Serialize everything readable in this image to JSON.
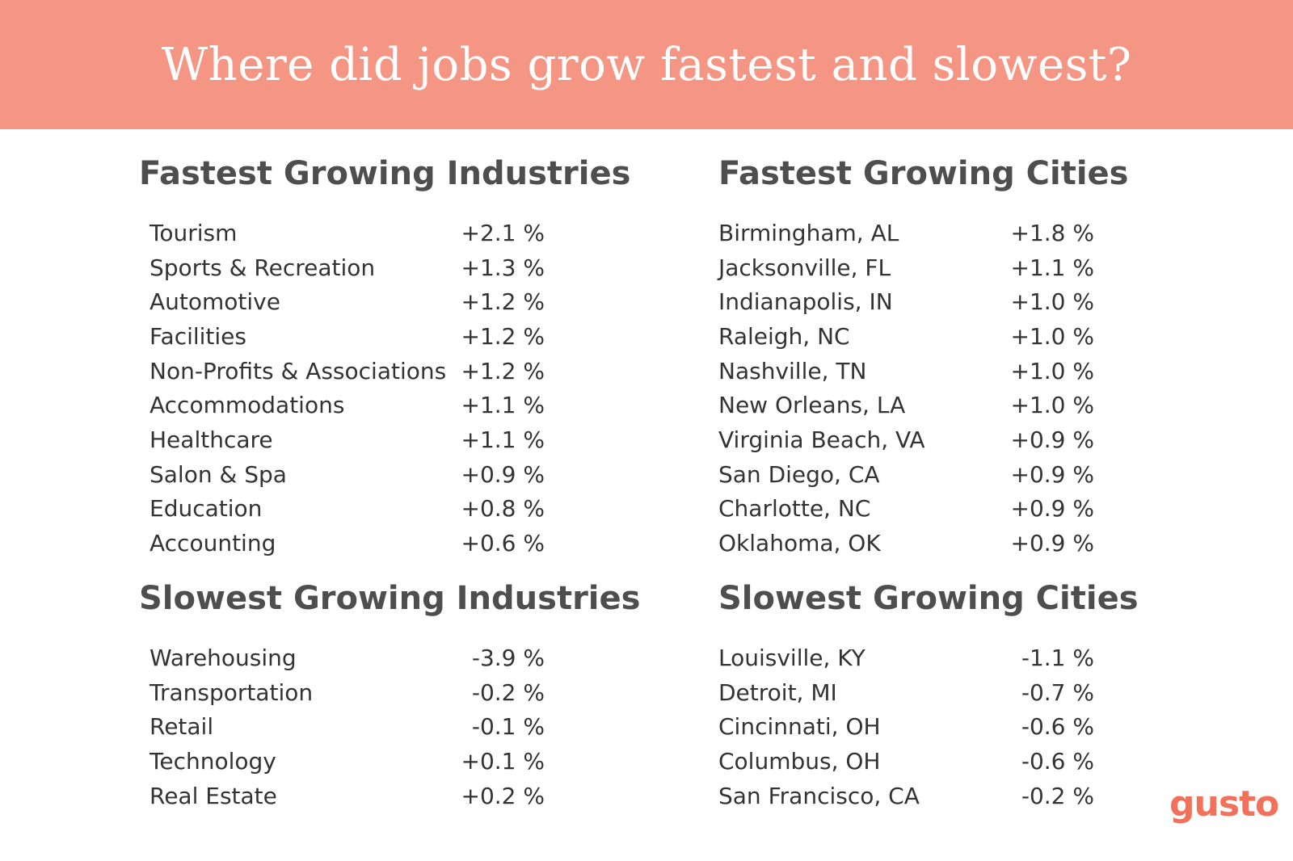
{
  "header": {
    "title": "Where did jobs grow fastest and slowest?"
  },
  "fastest_industries": {
    "title": "Fastest Growing Industries",
    "rows": [
      {
        "label": "Tourism",
        "value": "+2.1 %"
      },
      {
        "label": "Sports & Recreation",
        "value": "+1.3 %"
      },
      {
        "label": "Automotive",
        "value": "+1.2 %"
      },
      {
        "label": "Facilities",
        "value": "+1.2 %"
      },
      {
        "label": "Non-Profits & Associations",
        "value": "+1.2 %"
      },
      {
        "label": "Accommodations",
        "value": "+1.1 %"
      },
      {
        "label": "Healthcare",
        "value": "+1.1 %"
      },
      {
        "label": "Salon & Spa",
        "value": "+0.9 %"
      },
      {
        "label": "Education",
        "value": "+0.8 %"
      },
      {
        "label": "Accounting",
        "value": "+0.6 %"
      }
    ]
  },
  "fastest_cities": {
    "title": "Fastest Growing Cities",
    "rows": [
      {
        "label": "Birmingham, AL",
        "value": "+1.8 %"
      },
      {
        "label": "Jacksonville, FL",
        "value": "+1.1 %"
      },
      {
        "label": "Indianapolis, IN",
        "value": "+1.0 %"
      },
      {
        "label": "Raleigh, NC",
        "value": "+1.0 %"
      },
      {
        "label": "Nashville, TN",
        "value": "+1.0 %"
      },
      {
        "label": "New Orleans, LA",
        "value": "+1.0 %"
      },
      {
        "label": "Virginia Beach, VA",
        "value": "+0.9 %"
      },
      {
        "label": "San Diego, CA",
        "value": "+0.9 %"
      },
      {
        "label": "Charlotte, NC",
        "value": "+0.9 %"
      },
      {
        "label": "Oklahoma, OK",
        "value": "+0.9 %"
      }
    ]
  },
  "slowest_industries": {
    "title": "Slowest Growing Industries",
    "rows": [
      {
        "label": "Warehousing",
        "value": "-3.9 %"
      },
      {
        "label": "Transportation",
        "value": "-0.2 %"
      },
      {
        "label": "Retail",
        "value": "-0.1 %"
      },
      {
        "label": "Technology",
        "value": "+0.1 %"
      },
      {
        "label": "Real Estate",
        "value": "+0.2 %"
      }
    ]
  },
  "slowest_cities": {
    "title": "Slowest Growing Cities",
    "rows": [
      {
        "label": "Louisville, KY",
        "value": "-1.1 %"
      },
      {
        "label": "Detroit, MI",
        "value": "-0.7 %"
      },
      {
        "label": "Cincinnati, OH",
        "value": "-0.6 %"
      },
      {
        "label": "Columbus, OH",
        "value": "-0.6 %"
      },
      {
        "label": "San Francisco, CA",
        "value": "-0.2 %"
      }
    ]
  },
  "brand": {
    "logo_text": "gusto",
    "accent_color": "#f49683",
    "logo_color": "#f3705b"
  }
}
